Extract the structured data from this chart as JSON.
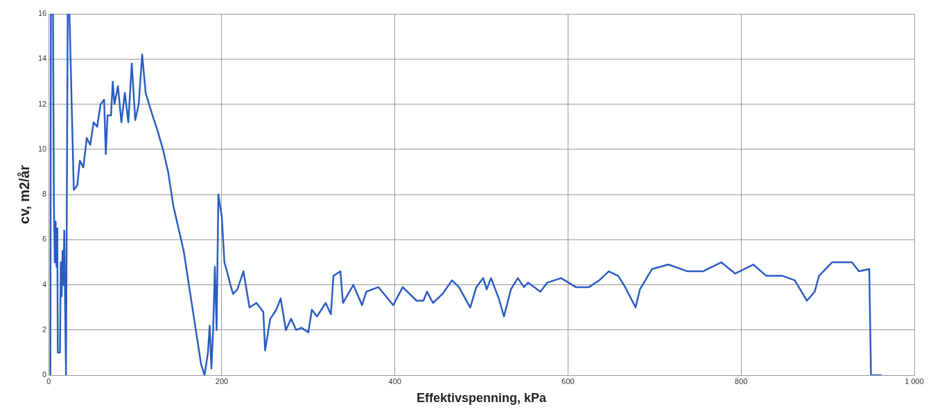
{
  "chart_data": {
    "type": "line",
    "xlabel": "Effektivspenning, kPa",
    "ylabel": "cv, m2/år",
    "x": [
      2,
      2.5,
      5,
      6,
      7,
      8,
      9,
      10,
      10.5,
      11,
      12,
      13,
      14,
      15,
      16,
      17,
      18,
      19,
      20,
      20.5,
      22,
      23,
      24,
      29,
      33,
      36,
      40,
      44,
      48,
      52,
      56,
      60,
      64,
      66,
      68,
      72,
      74,
      76,
      80,
      84,
      88,
      92,
      96,
      100,
      104,
      108,
      112,
      116,
      120,
      126,
      132,
      138,
      144,
      150,
      156,
      162,
      168,
      172,
      176,
      180,
      184,
      186,
      188,
      190,
      192,
      194,
      196,
      200,
      203,
      206,
      210,
      213,
      218,
      225,
      232,
      240,
      248,
      250,
      256,
      263,
      268,
      274,
      280,
      286,
      292,
      300,
      304,
      310,
      320,
      326,
      329,
      337,
      340,
      352,
      362,
      367,
      381,
      398,
      409,
      425,
      433,
      437,
      444,
      455,
      466,
      474,
      487,
      494,
      502,
      506,
      511,
      520,
      526,
      534,
      542,
      549,
      554,
      568,
      576,
      592,
      609,
      624,
      636,
      647,
      658,
      666,
      678,
      683,
      697,
      716,
      738,
      756,
      777,
      793,
      814,
      829,
      848,
      862,
      876,
      885,
      890,
      905,
      928,
      936,
      948,
      950,
      962
    ],
    "values": [
      0,
      16,
      16,
      7.8,
      5,
      6.8,
      4.8,
      6.5,
      1,
      1,
      1,
      1,
      5,
      3.5,
      5.5,
      4,
      6.4,
      3,
      0,
      0,
      16,
      16,
      16,
      8.2,
      8.4,
      9.5,
      9.2,
      10.5,
      10.2,
      11.2,
      11,
      12,
      12.2,
      9.8,
      11.5,
      11.5,
      13,
      12,
      12.8,
      11.2,
      12.5,
      11.2,
      13.8,
      11.3,
      12,
      14.2,
      12.5,
      12,
      11.5,
      10.8,
      10,
      9,
      7.5,
      6.5,
      5.5,
      4,
      2.5,
      1.5,
      0.5,
      0,
      1,
      2.2,
      0.3,
      2,
      4.8,
      2,
      8,
      7,
      5,
      4.6,
      4,
      3.6,
      3.8,
      4.6,
      3,
      3.2,
      2.8,
      1.1,
      2.5,
      2.9,
      3.4,
      2,
      2.5,
      2,
      2.1,
      1.9,
      2.9,
      2.6,
      3.2,
      2.7,
      4.4,
      4.6,
      3.2,
      4,
      3.1,
      3.7,
      3.9,
      3.1,
      3.9,
      3.3,
      3.3,
      3.7,
      3.2,
      3.6,
      4.2,
      3.9,
      3,
      3.9,
      4.3,
      3.8,
      4.3,
      3.4,
      2.6,
      3.8,
      4.3,
      3.9,
      4.1,
      3.7,
      4.1,
      4.3,
      3.9,
      3.9,
      4.2,
      4.6,
      4.4,
      3.9,
      3,
      3.8,
      4.7,
      4.9,
      4.6,
      4.6,
      5,
      4.5,
      4.9,
      4.4,
      4.4,
      4.2,
      3.3,
      3.7,
      4.4,
      5,
      5,
      4.6,
      4.7,
      0,
      0
    ],
    "color": "#2a5cc4",
    "line_style": "solid",
    "marker": "none",
    "xlim": [
      0,
      1000
    ],
    "xticks": [
      0,
      200,
      400,
      600,
      800,
      {
        "value": 1000,
        "label": "1 000"
      }
    ],
    "ylim": [
      0,
      16
    ],
    "yticks": [
      0,
      2,
      4,
      6,
      8,
      10,
      12,
      14,
      16
    ],
    "grid": true,
    "legend": false
  }
}
